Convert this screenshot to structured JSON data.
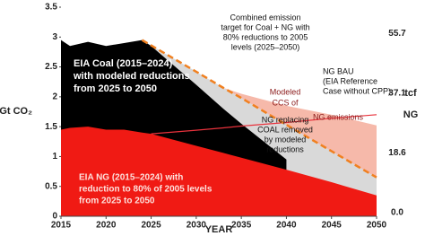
{
  "chart_data": {
    "type": "area",
    "x": [
      2015,
      2016,
      2018,
      2020,
      2022,
      2024,
      2025,
      2030,
      2033,
      2035,
      2040,
      2045,
      2050
    ],
    "series": [
      {
        "kind": "area",
        "color": "#f6b9aa",
        "values": [
          null,
          null,
          null,
          null,
          null,
          null,
          null,
          null,
          2.15,
          2.05,
          1.85,
          1.7,
          1.52
        ]
      },
      {
        "kind": "area",
        "color": "#d9d9d9",
        "values": [
          null,
          null,
          null,
          null,
          null,
          2.95,
          2.86,
          2.42,
          2.15,
          1.98,
          1.53,
          1.09,
          0.65
        ]
      },
      {
        "kind": "area",
        "color": "#000000",
        "values": [
          2.95,
          2.85,
          2.92,
          2.85,
          2.9,
          2.95,
          2.85,
          2.2,
          1.8,
          1.55,
          0.95,
          null,
          null
        ]
      },
      {
        "kind": "area",
        "color": "#f01a14",
        "values": [
          1.45,
          1.48,
          1.5,
          1.45,
          1.45,
          1.4,
          1.38,
          1.18,
          1.06,
          0.98,
          0.78,
          0.57,
          0.35
        ]
      },
      {
        "kind": "line",
        "color": "#e8323c",
        "values": [
          null,
          null,
          null,
          null,
          null,
          null,
          1.38,
          1.44,
          1.48,
          1.51,
          1.57,
          1.64,
          1.7
        ]
      },
      {
        "kind": "dashed",
        "color": "#f08020",
        "values": [
          null,
          null,
          null,
          null,
          null,
          2.95,
          2.86,
          2.42,
          2.15,
          1.98,
          1.53,
          1.09,
          0.65
        ]
      }
    ],
    "xlim": [
      2015,
      2050
    ],
    "xticks": [
      2015,
      2020,
      2025,
      2030,
      2035,
      2040,
      2045,
      2050
    ],
    "ylim": [
      0,
      3.5
    ],
    "yticks": [
      0,
      0.5,
      1,
      1.5,
      2,
      2.5,
      3,
      3.5
    ],
    "y2lim": [
      0,
      65
    ],
    "y2ticks": [
      0.0,
      18.6,
      37.1,
      55.7
    ],
    "y2tick_labels": [
      "0.0",
      "18.6",
      "37.1",
      "55.7"
    ],
    "xlabel": "YEAR",
    "ylabel": "Gt CO₂",
    "y2label": [
      "tcf",
      "NG"
    ],
    "annotations": [
      [
        "Combined emission",
        "target for Coal + NG with",
        "80% reductions to 2005",
        "levels (2025–2050)"
      ],
      [
        "NG BAU",
        "(EIA Reference",
        "Case without CPP)"
      ],
      [
        "EIA Coal (2015–2024)",
        "with modeled reductions",
        "from 2025 to 2050"
      ],
      [
        "Modeled",
        "CCS of",
        "NG emissions"
      ],
      [
        "NG replacing",
        "COAL removed",
        "by modeled",
        "reductions"
      ],
      [
        "EIA NG (2015–2024) with",
        "reduction to 80% of 2005 levels",
        "from 2025 to 2050"
      ]
    ]
  }
}
